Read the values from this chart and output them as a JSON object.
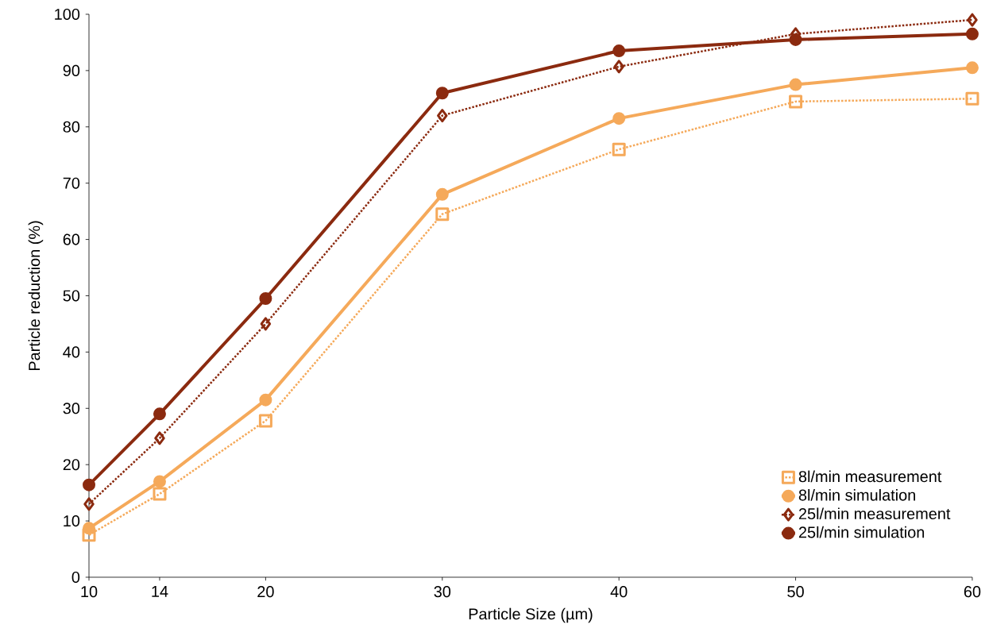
{
  "chart_data": {
    "type": "line",
    "xlabel": "Particle Size (µm)",
    "ylabel": "Particle reduction (%)",
    "x": [
      10,
      14,
      20,
      30,
      40,
      50,
      60
    ],
    "xlim": [
      10,
      60
    ],
    "xticks": [
      10,
      14,
      20,
      30,
      40,
      50,
      60
    ],
    "ylim": [
      0,
      100
    ],
    "yticks": [
      0,
      10,
      20,
      30,
      40,
      50,
      60,
      70,
      80,
      90,
      100
    ],
    "grid": false,
    "legend": "bottom right",
    "series": [
      {
        "name": "8l/min measurement",
        "color": "#f5a95a",
        "line_style": "dotted",
        "marker": "square",
        "values": [
          7.5,
          14.8,
          27.8,
          64.5,
          76,
          84.5,
          85
        ]
      },
      {
        "name": "8l/min  simulation",
        "color": "#f5a95a",
        "line_style": "solid",
        "marker": "circle",
        "values": [
          8.7,
          17,
          31.5,
          68,
          81.5,
          87.5,
          90.5
        ]
      },
      {
        "name": "25l/min measurement",
        "color": "#8b2a0f",
        "line_style": "dotted",
        "marker": "diamond",
        "values": [
          13,
          24.7,
          45,
          82,
          90.7,
          96.5,
          99
        ]
      },
      {
        "name": "25l/min simulation",
        "color": "#8b2a0f",
        "line_style": "solid",
        "marker": "circle",
        "values": [
          16.4,
          29,
          49.5,
          86,
          93.5,
          95.5,
          96.5
        ]
      }
    ]
  }
}
